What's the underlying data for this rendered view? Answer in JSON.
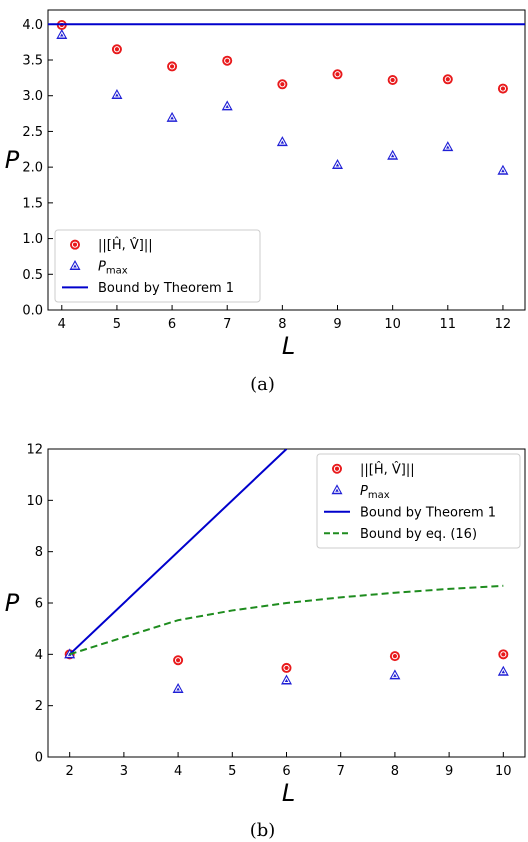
{
  "chart_data": [
    {
      "type": "scatter",
      "caption": "(a)",
      "xlabel": "L",
      "ylabel": "P",
      "xlim": [
        3.75,
        12.4
      ],
      "ylim": [
        0,
        4.2
      ],
      "xticks": [
        4,
        5,
        6,
        7,
        8,
        9,
        10,
        11,
        12
      ],
      "yticks": [
        0.0,
        0.5,
        1.0,
        1.5,
        2.0,
        2.5,
        3.0,
        3.5,
        4.0
      ],
      "ytick_labels": [
        "0.0",
        "0.5",
        "1.0",
        "1.5",
        "2.0",
        "2.5",
        "3.0",
        "3.5",
        "4.0"
      ],
      "grid": false,
      "legend_position": "lower-left",
      "series": [
        {
          "name": "||[Ĥ, V̂]||",
          "kind": "scatter",
          "marker": "circle",
          "color": "#e8191b",
          "x": [
            4,
            5,
            6,
            7,
            8,
            9,
            10,
            11,
            12
          ],
          "y": [
            3.99,
            3.65,
            3.41,
            3.49,
            3.16,
            3.3,
            3.22,
            3.23,
            3.1
          ]
        },
        {
          "name": "P_max",
          "kind": "scatter",
          "marker": "triangle",
          "color": "#1f1fd6",
          "x": [
            4,
            5,
            6,
            7,
            8,
            9,
            10,
            11,
            12
          ],
          "y": [
            3.85,
            3.01,
            2.69,
            2.85,
            2.35,
            2.03,
            2.16,
            2.28,
            1.95
          ]
        },
        {
          "name": "Bound by Theorem 1",
          "kind": "line",
          "style": "solid",
          "color": "#0000cc",
          "x": [
            3.75,
            12.4
          ],
          "y": [
            4.0,
            4.0
          ]
        }
      ]
    },
    {
      "type": "scatter",
      "caption": "(b)",
      "xlabel": "L",
      "ylabel": "P",
      "xlim": [
        1.6,
        10.4
      ],
      "ylim": [
        0,
        12
      ],
      "xticks": [
        2,
        3,
        4,
        5,
        6,
        7,
        8,
        9,
        10
      ],
      "yticks": [
        0,
        2,
        4,
        6,
        8,
        10,
        12
      ],
      "ytick_labels": [
        "0",
        "2",
        "4",
        "6",
        "8",
        "10",
        "12"
      ],
      "grid": false,
      "legend_position": "upper-right",
      "series": [
        {
          "name": "||[Ĥ, V̂]||",
          "kind": "scatter",
          "marker": "circle",
          "color": "#e8191b",
          "x": [
            2,
            4,
            6,
            8,
            10
          ],
          "y": [
            4.0,
            3.77,
            3.47,
            3.93,
            4.0
          ]
        },
        {
          "name": "P_max",
          "kind": "scatter",
          "marker": "triangle",
          "color": "#1f1fd6",
          "x": [
            2,
            4,
            6,
            8,
            10
          ],
          "y": [
            4.0,
            2.65,
            2.98,
            3.18,
            3.32
          ]
        },
        {
          "name": "Bound by Theorem 1",
          "kind": "line",
          "style": "solid",
          "color": "#0000cc",
          "x": [
            2,
            6
          ],
          "y": [
            4,
            12
          ]
        },
        {
          "name": "Bound by eq. (16)",
          "kind": "line",
          "style": "dashed",
          "color": "#1e8c1e",
          "x": [
            2,
            3,
            4,
            5,
            6,
            7,
            8,
            9,
            10
          ],
          "y": [
            4.0,
            4.67,
            5.33,
            5.71,
            6.0,
            6.22,
            6.4,
            6.55,
            6.67
          ]
        }
      ]
    }
  ]
}
